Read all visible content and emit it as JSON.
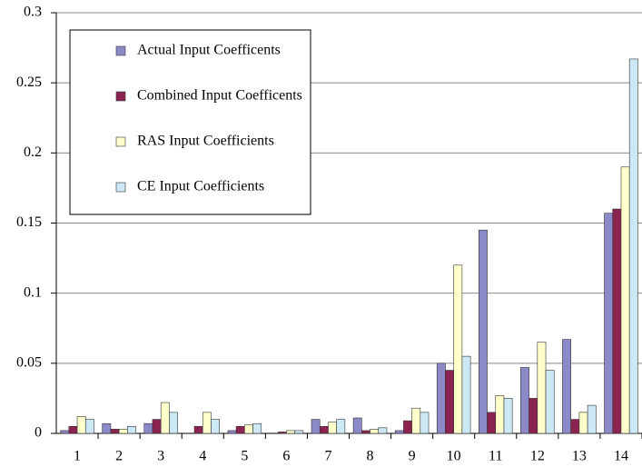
{
  "chart_data": {
    "type": "bar",
    "categories": [
      "1",
      "2",
      "3",
      "4",
      "5",
      "6",
      "7",
      "8",
      "9",
      "10",
      "11",
      "12",
      "13",
      "14"
    ],
    "series": [
      {
        "name": "Actual Input Coefficents",
        "color": "#8c89c8",
        "values": [
          0.002,
          0.007,
          0.007,
          0,
          0.002,
          0,
          0.01,
          0.011,
          0.002,
          0.05,
          0.145,
          0.047,
          0.067,
          0.157
        ]
      },
      {
        "name": "Combined Input Coefficents",
        "color": "#8b2350",
        "values": [
          0.005,
          0.003,
          0.01,
          0.005,
          0.005,
          0.001,
          0.005,
          0.002,
          0.009,
          0.045,
          0.015,
          0.025,
          0.01,
          0.16
        ]
      },
      {
        "name": "RAS Input Coefficients",
        "color": "#ffffcc",
        "values": [
          0.012,
          0.003,
          0.022,
          0.015,
          0.006,
          0.002,
          0.008,
          0.003,
          0.018,
          0.12,
          0.027,
          0.065,
          0.015,
          0.19
        ]
      },
      {
        "name": "CE Input Coefficients",
        "color": "#cce8f4",
        "values": [
          0.01,
          0.005,
          0.015,
          0.01,
          0.007,
          0.002,
          0.01,
          0.004,
          0.015,
          0.055,
          0.025,
          0.045,
          0.02,
          0.267
        ]
      }
    ],
    "ylim": [
      0,
      0.3
    ],
    "yticks": [
      0,
      0.05,
      0.1,
      0.15,
      0.2,
      0.25,
      0.3
    ],
    "grid": true,
    "legend": "upper left"
  }
}
